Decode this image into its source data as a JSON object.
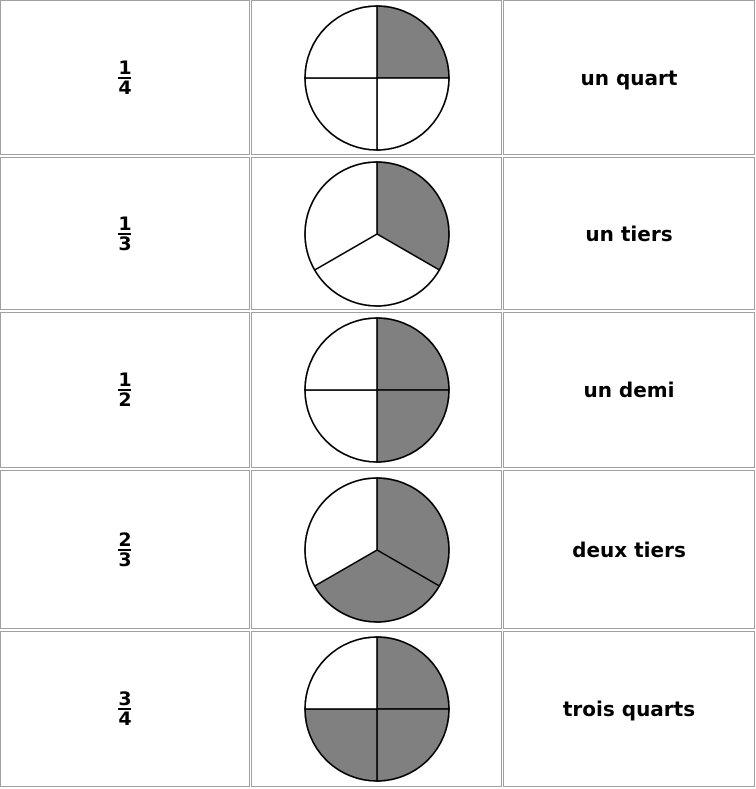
{
  "rows": [
    {
      "numerator": "1",
      "denominator": "4",
      "name": "un quart",
      "parts": 4,
      "shaded": 1
    },
    {
      "numerator": "1",
      "denominator": "3",
      "name": "un tiers",
      "parts": 3,
      "shaded": 1
    },
    {
      "numerator": "1",
      "denominator": "2",
      "name": "un demi",
      "parts": 4,
      "shaded": 2
    },
    {
      "numerator": "2",
      "denominator": "3",
      "name": "deux tiers",
      "parts": 3,
      "shaded": 2
    },
    {
      "numerator": "3",
      "denominator": "4",
      "name": "trois quarts",
      "parts": 4,
      "shaded": 3
    }
  ],
  "colors": {
    "shaded": "#808080",
    "unshaded": "#ffffff",
    "stroke": "#000000",
    "border": "#a0a0a0"
  }
}
